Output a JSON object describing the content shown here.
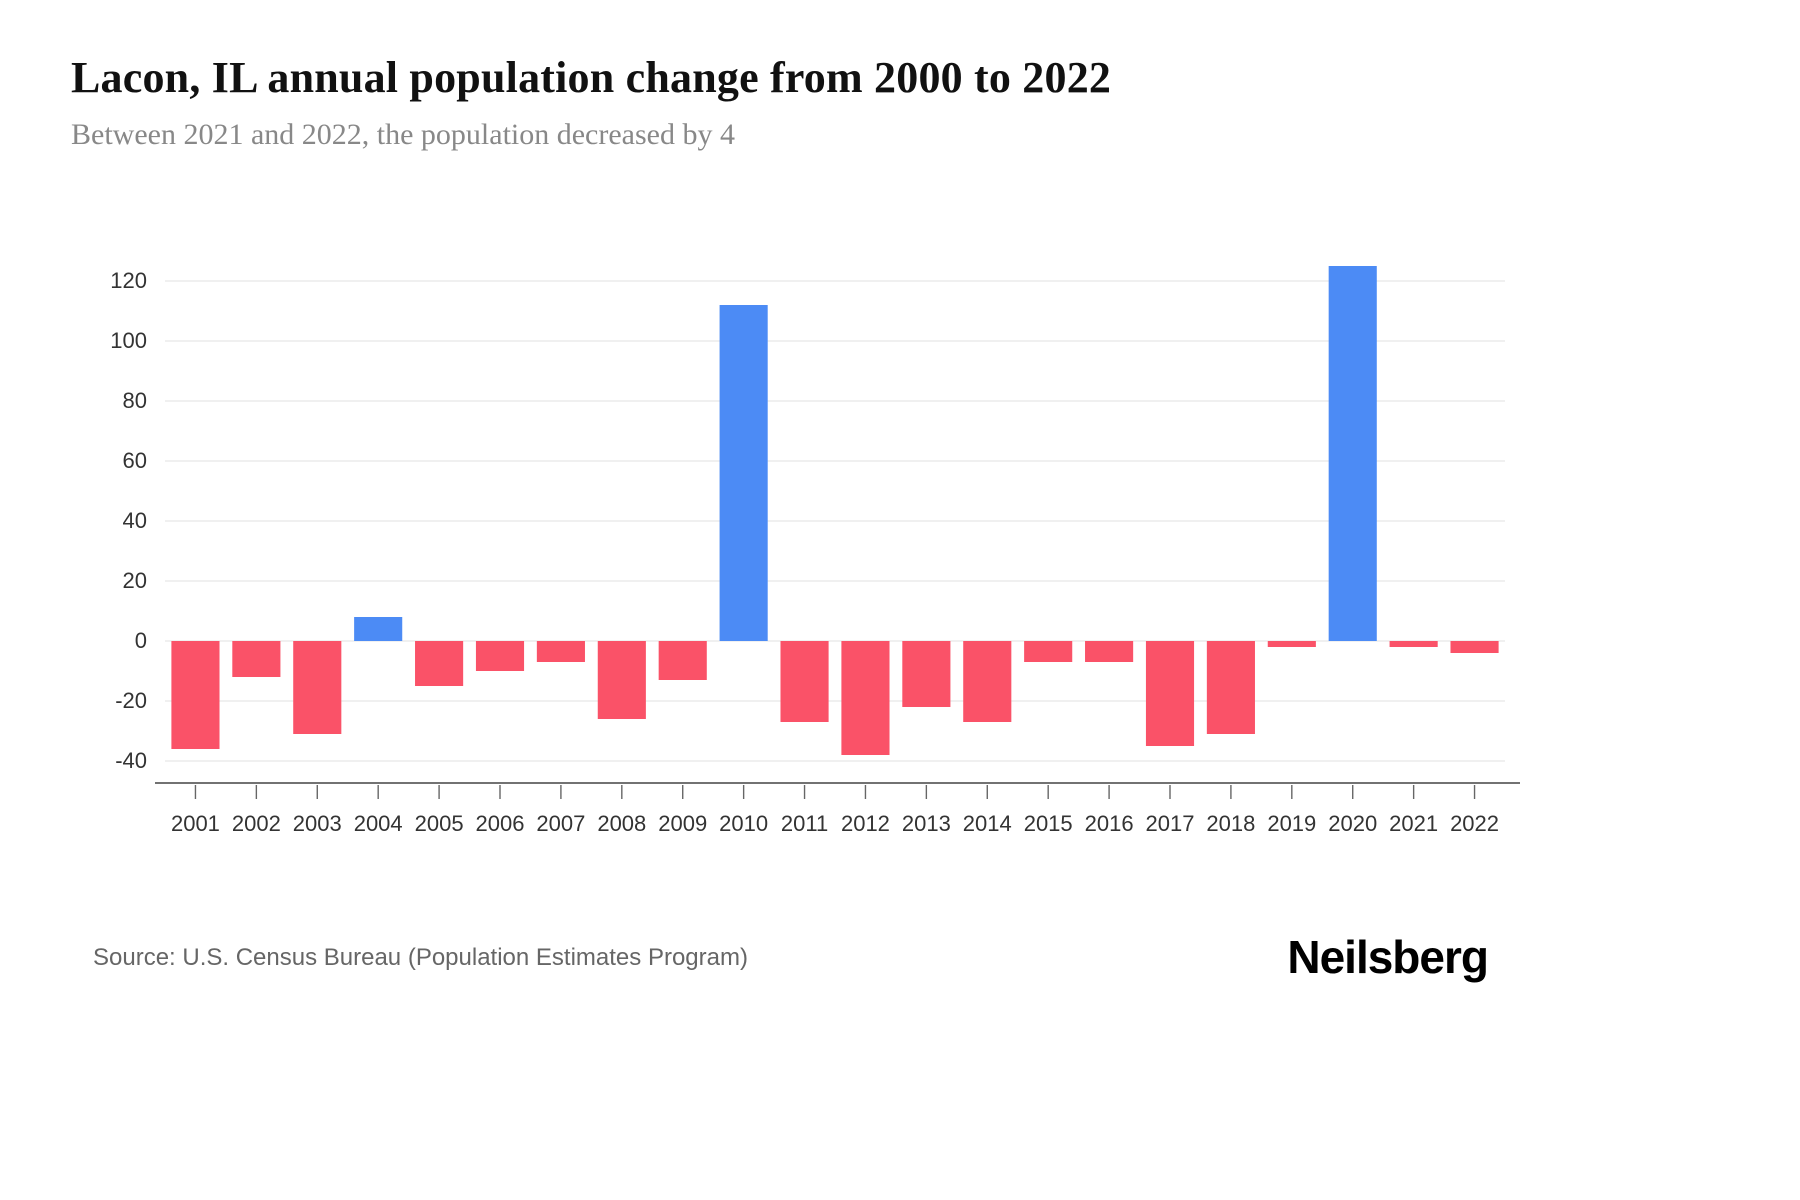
{
  "header": {
    "title": "Lacon, IL annual population change from 2000 to 2022",
    "subtitle": "Between 2021 and 2022, the population decreased by 4"
  },
  "footer": {
    "source": "Source: U.S. Census Bureau (Population Estimates Program)",
    "brand": "Neilsberg"
  },
  "chart_data": {
    "type": "bar",
    "title": "Lacon, IL annual population change from 2000 to 2022",
    "subtitle": "Between 2021 and 2022, the population decreased by 4",
    "categories": [
      "2001",
      "2002",
      "2003",
      "2004",
      "2005",
      "2006",
      "2007",
      "2008",
      "2009",
      "2010",
      "2011",
      "2012",
      "2013",
      "2014",
      "2015",
      "2016",
      "2017",
      "2018",
      "2019",
      "2020",
      "2021",
      "2022"
    ],
    "values": [
      -36,
      -12,
      -31,
      8,
      -15,
      -10,
      -7,
      -26,
      -13,
      112,
      -27,
      -38,
      -22,
      -27,
      -7,
      -7,
      -35,
      -31,
      -2,
      125,
      -2,
      -4
    ],
    "xlabel": "",
    "ylabel": "",
    "ylim": [
      -47,
      130
    ],
    "yticks": [
      -40,
      -20,
      0,
      20,
      40,
      60,
      80,
      100,
      120
    ],
    "grid": true,
    "legend": "none",
    "colors": {
      "positive": "#4C8BF5",
      "negative": "#FA5268",
      "gridline": "#ececec",
      "axis_line": "#444444",
      "tick_label": "#333333"
    }
  }
}
